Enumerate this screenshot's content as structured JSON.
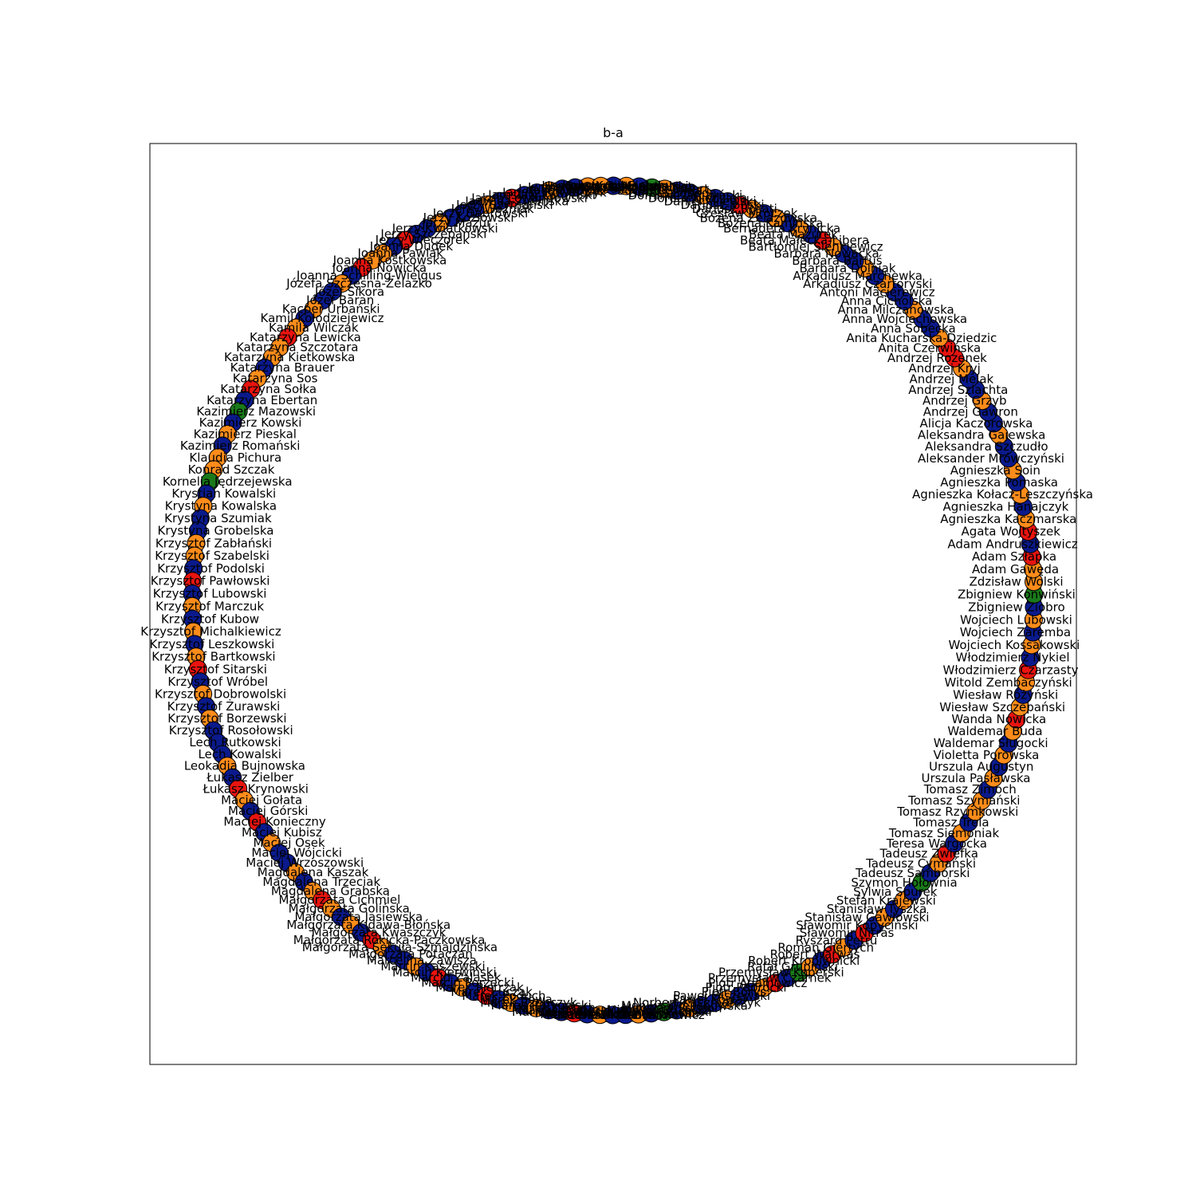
{
  "title": "b-a",
  "colors": {
    "navy": "#0a1a8c",
    "orange": "#ff8c1a",
    "red": "#e8140f",
    "green": "#1a7a1a",
    "edge": "#000000"
  },
  "graph": {
    "layout": "circular",
    "nodes": [
      {
        "label": "Henryk Nowak",
        "color": "orange"
      },
      {
        "label": "Iwona Kowalska",
        "color": "navy"
      },
      {
        "label": "Jan Wiśniewski",
        "color": "navy"
      },
      {
        "label": "Jacek Wójcik",
        "color": "orange"
      },
      {
        "label": "Janusz Kowalczyk",
        "color": "navy"
      },
      {
        "label": "Jarosław Kamiński",
        "color": "navy"
      },
      {
        "label": "Jakub Lewandowski",
        "color": "red"
      },
      {
        "label": "Jadwiga Zielińska",
        "color": "navy"
      },
      {
        "label": "Jerzy Szymański",
        "color": "orange"
      },
      {
        "label": "Jerzy Woźniak",
        "color": "navy"
      },
      {
        "label": "Jerzy Dąbrowski",
        "color": "navy"
      },
      {
        "label": "Jerzy Kozłowski",
        "color": "navy"
      },
      {
        "label": "Jerzy Mazur",
        "color": "orange"
      },
      {
        "label": "Jerzy Kwiatkowski",
        "color": "navy"
      },
      {
        "label": "Jerzy Szczepański",
        "color": "navy"
      },
      {
        "label": "Jerzy Wieczorek",
        "color": "red"
      },
      {
        "label": "Joanna Dudek",
        "color": "navy"
      },
      {
        "label": "Joanna Pawlak",
        "color": "orange"
      },
      {
        "label": "Joanna Kostkowska",
        "color": "orange"
      },
      {
        "label": "Joanna Nowicka",
        "color": "red"
      },
      {
        "label": "Joanna Schilling-Wielgus",
        "color": "navy"
      },
      {
        "label": "Józefa Szczęsna-Żelazko",
        "color": "orange"
      },
      {
        "label": "Józef Sikora",
        "color": "navy"
      },
      {
        "label": "Józef Baran",
        "color": "navy"
      },
      {
        "label": "Kacper Urbański",
        "color": "orange"
      },
      {
        "label": "Kamil Kołodziejewicz",
        "color": "navy"
      },
      {
        "label": "Kamila Wilczak",
        "color": "orange"
      },
      {
        "label": "Katarzyna Lewicka",
        "color": "red"
      },
      {
        "label": "Katarzyna Szczotara",
        "color": "orange"
      },
      {
        "label": "Katarzyna Kietkowska",
        "color": "orange"
      },
      {
        "label": "Katarzyna Brauer",
        "color": "navy"
      },
      {
        "label": "Katarzyna Sos",
        "color": "orange"
      },
      {
        "label": "Katarzyna Sołka",
        "color": "red"
      },
      {
        "label": "Katarzyna Ebertan",
        "color": "navy"
      },
      {
        "label": "Kazimierz Mazowski",
        "color": "green"
      },
      {
        "label": "Kazimierz Kowski",
        "color": "navy"
      },
      {
        "label": "Kazimierz Pieskal",
        "color": "orange"
      },
      {
        "label": "Kazimierz Romański",
        "color": "navy"
      },
      {
        "label": "Klaudia Pichura",
        "color": "orange"
      },
      {
        "label": "Konrad Szczak",
        "color": "orange"
      },
      {
        "label": "Kornelia Jędrzejewska",
        "color": "green"
      },
      {
        "label": "Krystian Kowalski",
        "color": "navy"
      },
      {
        "label": "Krystyna Kowalska",
        "color": "orange"
      },
      {
        "label": "Krystyna Szumiak",
        "color": "navy"
      },
      {
        "label": "Krystyna Grobelska",
        "color": "navy"
      },
      {
        "label": "Krzysztof Zabłański",
        "color": "orange"
      },
      {
        "label": "Krzysztof Szabelski",
        "color": "orange"
      },
      {
        "label": "Krzysztof Podolski",
        "color": "navy"
      },
      {
        "label": "Krzysztof Pawłowski",
        "color": "red"
      },
      {
        "label": "Krzysztof Lubowski",
        "color": "navy"
      },
      {
        "label": "Krzysztof Marczuk",
        "color": "orange"
      },
      {
        "label": "Krzysztof Kubow",
        "color": "navy"
      },
      {
        "label": "Krzysztof Michalkiewicz",
        "color": "orange"
      },
      {
        "label": "Krzysztof Leszkowski",
        "color": "navy"
      },
      {
        "label": "Krzysztof Bartkowski",
        "color": "orange"
      },
      {
        "label": "Krzysztof Sitarski",
        "color": "red"
      },
      {
        "label": "Krzysztof Wróbel",
        "color": "navy"
      },
      {
        "label": "Krzysztof Dobrowolski",
        "color": "orange"
      },
      {
        "label": "Krzysztof Żurawski",
        "color": "navy"
      },
      {
        "label": "Krzysztof Borzewski",
        "color": "orange"
      },
      {
        "label": "Krzysztof Rosołowski",
        "color": "navy"
      },
      {
        "label": "Lech Rutkowski",
        "color": "navy"
      },
      {
        "label": "Lech Kowalski",
        "color": "navy"
      },
      {
        "label": "Leokadia Bujnowska",
        "color": "orange"
      },
      {
        "label": "Łukasz Zielber",
        "color": "navy"
      },
      {
        "label": "Łukasz Krynowski",
        "color": "red"
      },
      {
        "label": "Maciej Gołata",
        "color": "orange"
      },
      {
        "label": "Maciej Górski",
        "color": "navy"
      },
      {
        "label": "Maciej Konieczny",
        "color": "red"
      },
      {
        "label": "Maciej Kubisz",
        "color": "navy"
      },
      {
        "label": "Maciej Osek",
        "color": "orange"
      },
      {
        "label": "Maciej Wójcicki",
        "color": "navy"
      },
      {
        "label": "Maciej Wrzoszowski",
        "color": "navy"
      },
      {
        "label": "Magdalena Kaszak",
        "color": "orange"
      },
      {
        "label": "Magdalena Trzeciak",
        "color": "navy"
      },
      {
        "label": "Magdalena Grabska",
        "color": "orange"
      },
      {
        "label": "Małgorzata Cichmiel",
        "color": "red"
      },
      {
        "label": "Małgorzata Golińska",
        "color": "orange"
      },
      {
        "label": "Małgorzata Jasiewska",
        "color": "navy"
      },
      {
        "label": "Małgorzata Kidawa-Błońska",
        "color": "orange"
      },
      {
        "label": "Małgorzata Kwaszczyk",
        "color": "navy"
      },
      {
        "label": "Małgorzata Rokicka-Pączkowska",
        "color": "red"
      },
      {
        "label": "Małgorzata Sekuła-Szmajdzińska",
        "color": "orange"
      },
      {
        "label": "Małgorzata Potaczan",
        "color": "navy"
      },
      {
        "label": "Marcelina Zawisza",
        "color": "navy"
      },
      {
        "label": "Marcin Kaszewski",
        "color": "orange"
      },
      {
        "label": "Marcin Kierwiński",
        "color": "navy"
      },
      {
        "label": "Marcin Zalasek",
        "color": "red"
      },
      {
        "label": "Marcin Porzecki",
        "color": "navy"
      },
      {
        "label": "Marek Pietrzak",
        "color": "orange"
      },
      {
        "label": "Marek Łuczak",
        "color": "navy"
      },
      {
        "label": "Marek Poduch",
        "color": "red"
      },
      {
        "label": "Marek Sowa",
        "color": "navy"
      },
      {
        "label": "Marek Rzepczyk",
        "color": "orange"
      },
      {
        "label": "Marek Rutkowski",
        "color": "navy"
      },
      {
        "label": "Mariusz Kaata",
        "color": "orange"
      },
      {
        "label": "Mariusz Witczak",
        "color": "navy"
      },
      {
        "label": "Mariusz Jaworski",
        "color": "navy"
      },
      {
        "label": "Marta Kubiak",
        "color": "red"
      },
      {
        "label": "Marta Niewczas",
        "color": "navy"
      },
      {
        "label": "Mateusz Bochenek",
        "color": "orange"
      },
      {
        "label": "Mateusz Kozłowski",
        "color": "navy"
      },
      {
        "label": "Marzena Okła-Drewnowicz",
        "color": "navy"
      },
      {
        "label": "Michał Jaros",
        "color": "orange"
      },
      {
        "label": "Michał Szczerba",
        "color": "navy"
      },
      {
        "label": "Michał Stasiński",
        "color": "green"
      },
      {
        "label": "Mirosław Różecka",
        "color": "navy"
      },
      {
        "label": "Mirosław Suchoń",
        "color": "orange"
      },
      {
        "label": "Monika Wielichowska",
        "color": "navy"
      },
      {
        "label": "Norbert Kaczmarczyk",
        "color": "navy"
      },
      {
        "label": "Paweł Kowal",
        "color": "orange"
      },
      {
        "label": "Paweł Olszewski",
        "color": "navy"
      },
      {
        "label": "Piotr Borys",
        "color": "navy"
      },
      {
        "label": "Piotr Paprocki",
        "color": "orange"
      },
      {
        "label": "Piotr Adamowicz",
        "color": "red"
      },
      {
        "label": "Przemysław Czarnek",
        "color": "navy"
      },
      {
        "label": "Przemysław Koperski",
        "color": "green"
      },
      {
        "label": "Rafał Grupiński",
        "color": "orange"
      },
      {
        "label": "Robert Kropiwnicki",
        "color": "navy"
      },
      {
        "label": "Robert Warwas",
        "color": "red"
      },
      {
        "label": "Roman Giertych",
        "color": "orange"
      },
      {
        "label": "Ryszard Petru",
        "color": "navy"
      },
      {
        "label": "Sławomir Nitras",
        "color": "red"
      },
      {
        "label": "Sławomir Kopyciński",
        "color": "navy"
      },
      {
        "label": "Stanisław Gawłowski",
        "color": "orange"
      },
      {
        "label": "Stanisław Tyszka",
        "color": "navy"
      },
      {
        "label": "Stefan Krajewski",
        "color": "orange"
      },
      {
        "label": "Sylwia Spurek",
        "color": "navy"
      },
      {
        "label": "Szymon Hołownia",
        "color": "green"
      },
      {
        "label": "Tadeusz Samborski",
        "color": "navy"
      },
      {
        "label": "Tadeusz Cymański",
        "color": "orange"
      },
      {
        "label": "Tadeusz Zwiefka",
        "color": "red"
      },
      {
        "label": "Teresa Wargocka",
        "color": "navy"
      },
      {
        "label": "Tomasz Siemoniak",
        "color": "orange"
      },
      {
        "label": "Tomasz Trela",
        "color": "navy"
      },
      {
        "label": "Tomasz Rzymkowski",
        "color": "orange"
      },
      {
        "label": "Tomasz Szymański",
        "color": "orange"
      },
      {
        "label": "Tomasz Zimoch",
        "color": "navy"
      },
      {
        "label": "Urszula Pasławska",
        "color": "orange"
      },
      {
        "label": "Urszula Augustyn",
        "color": "navy"
      },
      {
        "label": "Violetta Porowska",
        "color": "orange"
      },
      {
        "label": "Waldemar Sługocki",
        "color": "navy"
      },
      {
        "label": "Waldemar Buda",
        "color": "orange"
      },
      {
        "label": "Wanda Nowicka",
        "color": "red"
      },
      {
        "label": "Wiesław Szczepański",
        "color": "orange"
      },
      {
        "label": "Wiesław Różyński",
        "color": "navy"
      },
      {
        "label": "Witold Zembaczyński",
        "color": "orange"
      },
      {
        "label": "Włodzimierz Czarzasty",
        "color": "red"
      },
      {
        "label": "Włodzimierz Nykiel",
        "color": "navy"
      },
      {
        "label": "Wojciech Kossakowski",
        "color": "orange"
      },
      {
        "label": "Wojciech Zaremba",
        "color": "navy"
      },
      {
        "label": "Wojciech Lubowski",
        "color": "orange"
      },
      {
        "label": "Zbigniew Ziobro",
        "color": "navy"
      },
      {
        "label": "Zbigniew Konwiński",
        "color": "green"
      },
      {
        "label": "Zdzisław Wolski",
        "color": "orange"
      },
      {
        "label": "Adam Gawęda",
        "color": "orange"
      },
      {
        "label": "Adam Szłapka",
        "color": "red"
      },
      {
        "label": "Adam Andruszkiewicz",
        "color": "navy"
      },
      {
        "label": "Agata Wojtyszek",
        "color": "red"
      },
      {
        "label": "Agnieszka Kaczmarska",
        "color": "orange"
      },
      {
        "label": "Agnieszka Hanajczyk",
        "color": "navy"
      },
      {
        "label": "Agnieszka Kołacz-Leszczyńska",
        "color": "orange"
      },
      {
        "label": "Agnieszka Pomaska",
        "color": "navy"
      },
      {
        "label": "Agnieszka Soin",
        "color": "orange"
      },
      {
        "label": "Aleksander Mrówczyński",
        "color": "navy"
      },
      {
        "label": "Aleksandra Szczudło",
        "color": "navy"
      },
      {
        "label": "Aleksandra Gajewska",
        "color": "orange"
      },
      {
        "label": "Alicja Kaczorowska",
        "color": "navy"
      },
      {
        "label": "Andrzej Gawron",
        "color": "navy"
      },
      {
        "label": "Andrzej Grzyb",
        "color": "orange"
      },
      {
        "label": "Andrzej Szlachta",
        "color": "navy"
      },
      {
        "label": "Andrzej Melak",
        "color": "navy"
      },
      {
        "label": "Andrzej Kryj",
        "color": "orange"
      },
      {
        "label": "Andrzej Rozenek",
        "color": "red"
      },
      {
        "label": "Anita Czerwińska",
        "color": "red"
      },
      {
        "label": "Anita Kucharska-Dziedzic",
        "color": "orange"
      },
      {
        "label": "Anna Sobecka",
        "color": "navy"
      },
      {
        "label": "Anna Wojciechowska",
        "color": "navy"
      },
      {
        "label": "Anna Milczanowska",
        "color": "orange"
      },
      {
        "label": "Anna Cicholska",
        "color": "navy"
      },
      {
        "label": "Antoni Macierewicz",
        "color": "navy"
      },
      {
        "label": "Arkadiusz Czartoryski",
        "color": "orange"
      },
      {
        "label": "Arkadiusz Marchewka",
        "color": "navy"
      },
      {
        "label": "Barbara Dolniak",
        "color": "orange"
      },
      {
        "label": "Barbara Bartuś",
        "color": "navy"
      },
      {
        "label": "Barbara Nowacka",
        "color": "navy"
      },
      {
        "label": "Bartłomiej Sienkiewicz",
        "color": "orange"
      },
      {
        "label": "Beata Małecka-Libera",
        "color": "red"
      },
      {
        "label": "Beata Mazurek",
        "color": "navy"
      },
      {
        "label": "Bernadeta Krynicka",
        "color": "orange"
      },
      {
        "label": "Bożena Kamińska",
        "color": "navy"
      },
      {
        "label": "Bożena Żelazowska",
        "color": "orange"
      },
      {
        "label": "Czesław Mroczek",
        "color": "navy"
      },
      {
        "label": "Dariusz Rosati",
        "color": "orange"
      },
      {
        "label": "Dariusz Joński",
        "color": "red"
      },
      {
        "label": "Daniel Milewski",
        "color": "navy"
      },
      {
        "label": "Dorota Niedziela",
        "color": "navy"
      },
      {
        "label": "Dominik Tarczyński",
        "color": "orange"
      },
      {
        "label": "Dorota Łoboda",
        "color": "navy"
      },
      {
        "label": "Edward Siarka",
        "color": "navy"
      },
      {
        "label": "Elżbieta Gelert",
        "color": "orange"
      },
      {
        "label": "Elżbieta Witek",
        "color": "green"
      },
      {
        "label": "Grzegorz Schetyna",
        "color": "navy"
      },
      {
        "label": "Grzegorz Napieralski",
        "color": "orange"
      },
      {
        "label": "Hanna Gill-Piątek",
        "color": "navy"
      },
      {
        "label": "Henryka Krzywonos",
        "color": "orange"
      }
    ],
    "edges": []
  }
}
